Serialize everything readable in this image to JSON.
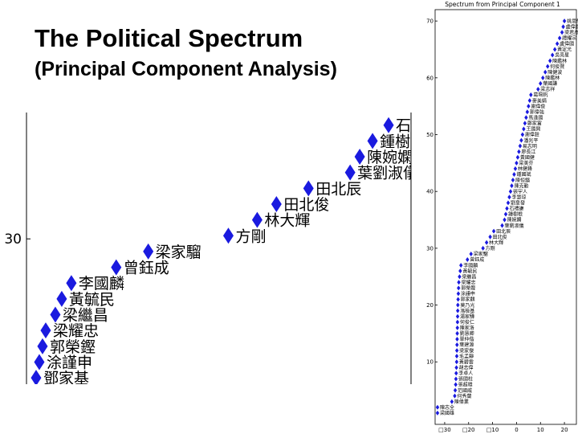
{
  "header": {
    "title": "The Political Spectrum",
    "subtitle": "(Principal Component Analysis)"
  },
  "colors": {
    "marker": "#1a1adf",
    "axis": "#000000",
    "background": "#ffffff"
  },
  "chart_data": [
    {
      "type": "scatter",
      "title": "",
      "xlabel": "",
      "ylabel": "",
      "xlim": [
        -25,
        -13
      ],
      "ylim": [
        25.4,
        34.0
      ],
      "ytick_labels": [
        "30"
      ],
      "yticks": [
        30
      ],
      "points": [
        {
          "label": "鄧家基",
          "x": -24.7,
          "y": 25.6
        },
        {
          "label": "涂謹申",
          "x": -24.6,
          "y": 26.1
        },
        {
          "label": "郭榮鏗",
          "x": -24.5,
          "y": 26.6
        },
        {
          "label": "梁耀忠",
          "x": -24.4,
          "y": 27.1
        },
        {
          "label": "梁繼昌",
          "x": -24.1,
          "y": 27.6
        },
        {
          "label": "黃毓民",
          "x": -23.9,
          "y": 28.1
        },
        {
          "label": "李國麟",
          "x": -23.6,
          "y": 28.6
        },
        {
          "label": "曾鈺成",
          "x": -22.2,
          "y": 29.1
        },
        {
          "label": "梁家騮",
          "x": -21.2,
          "y": 29.6
        },
        {
          "label": "方剛",
          "x": -18.7,
          "y": 30.1
        },
        {
          "label": "林大輝",
          "x": -17.8,
          "y": 30.6
        },
        {
          "label": "田北俊",
          "x": -17.2,
          "y": 31.1
        },
        {
          "label": "田北辰",
          "x": -16.2,
          "y": 31.6
        },
        {
          "label": "葉劉淑儀",
          "x": -14.9,
          "y": 32.1
        },
        {
          "label": "陳婉嫻",
          "x": -14.6,
          "y": 32.6
        },
        {
          "label": "鍾樹根",
          "x": -14.2,
          "y": 33.1
        },
        {
          "label": "石禮謙",
          "x": -13.7,
          "y": 33.6
        }
      ]
    },
    {
      "type": "scatter",
      "title": "Spectrum from Principal Component 1",
      "xlabel": "",
      "ylabel": "",
      "xlim": [
        -34,
        25
      ],
      "ylim": [
        -1,
        72
      ],
      "xticks": [
        -30,
        -20,
        -10,
        0,
        10,
        20
      ],
      "xtick_labels": [
        "□30",
        "□20",
        "□10",
        "0",
        "10",
        "20"
      ],
      "yticks": [
        10,
        20,
        30,
        40,
        50,
        60,
        70
      ],
      "ytick_labels": [
        "10",
        "20",
        "30",
        "40",
        "50",
        "60",
        "70"
      ],
      "points": [
        {
          "label": "梁國雄",
          "x": -33,
          "y": 1
        },
        {
          "label": "陳志全",
          "x": -33,
          "y": 2
        },
        {
          "label": "陳偉業",
          "x": -27,
          "y": 3
        },
        {
          "label": "何秀蘭",
          "x": -25.8,
          "y": 4
        },
        {
          "label": "范國威",
          "x": -25.6,
          "y": 5
        },
        {
          "label": "張超雄",
          "x": -25.4,
          "y": 6
        },
        {
          "label": "張國柱",
          "x": -25.3,
          "y": 7
        },
        {
          "label": "李卓人",
          "x": -25.2,
          "y": 8
        },
        {
          "label": "胡志偉",
          "x": -25.1,
          "y": 9
        },
        {
          "label": "黃碧雲",
          "x": -25.0,
          "y": 10
        },
        {
          "label": "毛孟靜",
          "x": -24.95,
          "y": 11
        },
        {
          "label": "梁家傑",
          "x": -24.9,
          "y": 12
        },
        {
          "label": "葉建源",
          "x": -24.85,
          "y": 13
        },
        {
          "label": "單仲偕",
          "x": -24.8,
          "y": 14
        },
        {
          "label": "劉慧卿",
          "x": -24.75,
          "y": 15
        },
        {
          "label": "陳家洛",
          "x": -24.7,
          "y": 16
        },
        {
          "label": "何俊仁",
          "x": -24.65,
          "y": 17
        },
        {
          "label": "湯家驊",
          "x": -24.6,
          "y": 18
        },
        {
          "label": "馮檢基",
          "x": -24.55,
          "y": 19
        },
        {
          "label": "莫乃光",
          "x": -24.5,
          "y": 20
        },
        {
          "label": "郭家麒",
          "x": -24.4,
          "y": 21
        },
        {
          "label": "涂謹申",
          "x": -24.3,
          "y": 22
        },
        {
          "label": "郭榮鏗",
          "x": -24.2,
          "y": 23
        },
        {
          "label": "梁耀忠",
          "x": -24.1,
          "y": 24
        },
        {
          "label": "梁繼昌",
          "x": -23.8,
          "y": 25
        },
        {
          "label": "黃毓民",
          "x": -23.5,
          "y": 26
        },
        {
          "label": "李國麟",
          "x": -23.2,
          "y": 27
        },
        {
          "label": "曾鈺成",
          "x": -20.5,
          "y": 28
        },
        {
          "label": "梁家騮",
          "x": -19,
          "y": 29
        },
        {
          "label": "方剛",
          "x": -14,
          "y": 30
        },
        {
          "label": "林大輝",
          "x": -12.5,
          "y": 31
        },
        {
          "label": "田北俊",
          "x": -11,
          "y": 32
        },
        {
          "label": "田北辰",
          "x": -9.5,
          "y": 33
        },
        {
          "label": "葉劉淑儀",
          "x": -6,
          "y": 34
        },
        {
          "label": "陳婉嫻",
          "x": -5,
          "y": 35
        },
        {
          "label": "鍾樹根",
          "x": -4.5,
          "y": 36
        },
        {
          "label": "石禮謙",
          "x": -4,
          "y": 37
        },
        {
          "label": "劉皇發",
          "x": -3.5,
          "y": 38
        },
        {
          "label": "李慧琼",
          "x": -3,
          "y": 39
        },
        {
          "label": "張宇人",
          "x": -2.5,
          "y": 40
        },
        {
          "label": "陳克勤",
          "x": -2,
          "y": 41
        },
        {
          "label": "陳恒鑌",
          "x": -1.5,
          "y": 42
        },
        {
          "label": "鍾國斌",
          "x": -1,
          "y": 43
        },
        {
          "label": "林健鋒",
          "x": -0.5,
          "y": 44
        },
        {
          "label": "梁美芬",
          "x": 0,
          "y": 45
        },
        {
          "label": "黃國健",
          "x": 0.5,
          "y": 46
        },
        {
          "label": "廖長江",
          "x": 1,
          "y": 47
        },
        {
          "label": "易志明",
          "x": 1.5,
          "y": 48
        },
        {
          "label": "潘兆平",
          "x": 2,
          "y": 49
        },
        {
          "label": "謝偉銓",
          "x": 2.5,
          "y": 50
        },
        {
          "label": "王國興",
          "x": 3,
          "y": 51
        },
        {
          "label": "鄭家富",
          "x": 3.5,
          "y": 52
        },
        {
          "label": "馬逢國",
          "x": 4,
          "y": 53
        },
        {
          "label": "郭偉強",
          "x": 4.5,
          "y": 54
        },
        {
          "label": "謝偉俊",
          "x": 5,
          "y": 55
        },
        {
          "label": "麥美娟",
          "x": 5.5,
          "y": 56
        },
        {
          "label": "葛珮帆",
          "x": 6,
          "y": 57
        },
        {
          "label": "梁志祥",
          "x": 9,
          "y": 58
        },
        {
          "label": "葉國謙",
          "x": 10,
          "y": 59
        },
        {
          "label": "陳鑑林",
          "x": 11,
          "y": 60
        },
        {
          "label": "陳健波",
          "x": 12,
          "y": 61
        },
        {
          "label": "何俊賢",
          "x": 13,
          "y": 62
        },
        {
          "label": "陳鑑林",
          "x": 14,
          "y": 63
        },
        {
          "label": "吳亮星",
          "x": 15,
          "y": 64
        },
        {
          "label": "黃定光",
          "x": 16,
          "y": 65
        },
        {
          "label": "盧偉國",
          "x": 17,
          "y": 66
        },
        {
          "label": "譚耀宗",
          "x": 18,
          "y": 67
        },
        {
          "label": "梁君彥",
          "x": 19,
          "y": 68
        },
        {
          "label": "盧偉國",
          "x": 19.5,
          "y": 69
        },
        {
          "label": "姚思榮",
          "x": 20,
          "y": 70
        }
      ]
    }
  ]
}
